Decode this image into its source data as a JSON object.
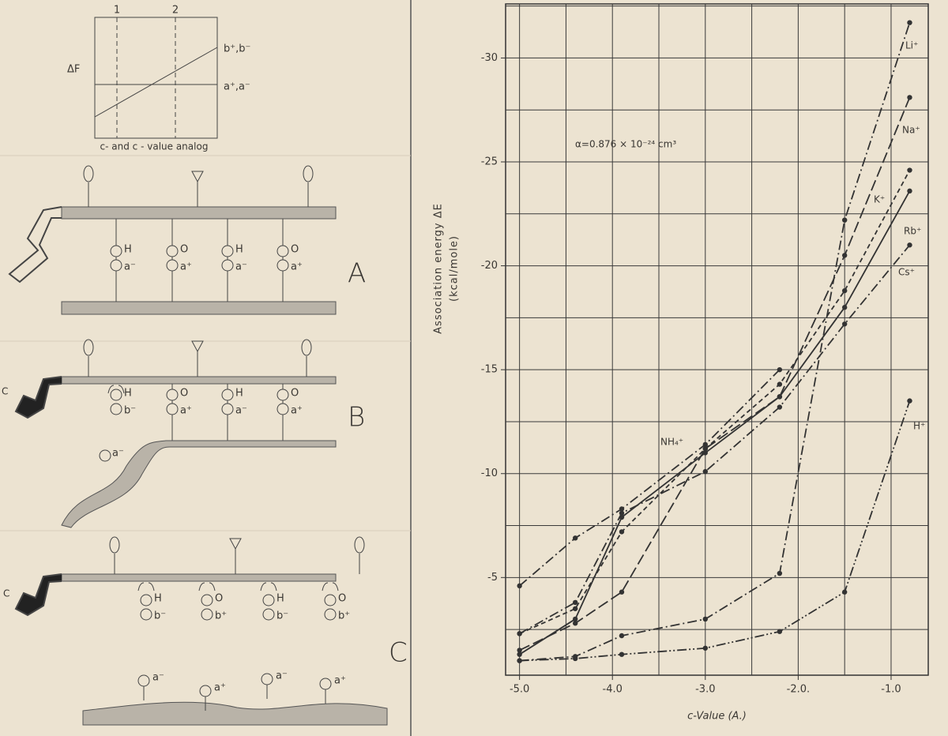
{
  "diagram": {
    "top_graph": {
      "ticks": [
        "1",
        "2"
      ],
      "y_label": "ΔF",
      "upper_label": "b⁺,b⁻",
      "lower_label": "a⁺,a⁻",
      "caption": "c- and c - value analog"
    },
    "panels": [
      {
        "letter": "A",
        "pairs": [
          {
            "top": "H",
            "bottom": "a⁻"
          },
          {
            "top": "O",
            "bottom": "a⁺"
          },
          {
            "top": "H",
            "bottom": "a⁻"
          },
          {
            "top": "O",
            "bottom": "a⁺"
          }
        ]
      },
      {
        "letter": "B",
        "side": "C",
        "pairs": [
          {
            "top": "H",
            "bottom": "b⁻"
          },
          {
            "top": "O",
            "bottom": "a⁺"
          },
          {
            "top": "H",
            "bottom": "a⁻"
          },
          {
            "top": "O",
            "bottom": "a⁺"
          }
        ],
        "free": [
          "a⁻"
        ]
      },
      {
        "letter": "C",
        "side": "C",
        "pairs": [
          {
            "top": "H",
            "bottom": "b⁻"
          },
          {
            "top": "O",
            "bottom": "b⁺"
          },
          {
            "top": "H",
            "bottom": "b⁻"
          },
          {
            "top": "O",
            "bottom": "b⁺"
          }
        ],
        "free": [
          "a⁻",
          "a⁺",
          "a⁻",
          "a⁺"
        ]
      }
    ]
  },
  "chart_data": {
    "type": "line",
    "annotation": "α=0.876 × 10⁻²⁴ cm³",
    "x_label": "c-Value (A.)",
    "y_label": [
      "Association energy  ΔE",
      "(kcal/mole)"
    ],
    "x": [
      -5.0,
      -4.4,
      -3.9,
      -3.0,
      -2.2,
      -1.5,
      -0.8
    ],
    "xlim": [
      -5.15,
      -0.6
    ],
    "ylim": [
      -0.3,
      -32.6
    ],
    "xticks": [
      {
        "value": -5,
        "label": "-5.0"
      },
      {
        "value": -4,
        "label": "-4.0"
      },
      {
        "value": -3,
        "label": "-3.0"
      },
      {
        "value": -2,
        "label": "-2.0."
      },
      {
        "value": -1,
        "label": "-1.0"
      }
    ],
    "yticks": [
      -30,
      -25,
      -20,
      -15,
      -10,
      -5
    ],
    "xgrid": [
      -5,
      -4.5,
      -4,
      -3.5,
      -3,
      -2.5,
      -2,
      -1.5,
      -1
    ],
    "ygrid": [
      -2.5,
      -5,
      -7.5,
      -10,
      -12.5,
      -15,
      -17.5,
      -20,
      -22.5,
      -25,
      -27.5,
      -30,
      -32.5
    ],
    "grid": true,
    "series": [
      {
        "name": "Li⁺",
        "color": "#333333",
        "line_style": "dash-dot",
        "values": [
          -1.0,
          -1.2,
          -2.2,
          -3.0,
          -5.2,
          -22.2,
          -31.7
        ]
      },
      {
        "name": "Na⁺",
        "color": "#333333",
        "line_style": "long-dash",
        "values": [
          -1.5,
          -2.8,
          -4.3,
          -11.2,
          -13.7,
          -20.5,
          -28.1
        ]
      },
      {
        "name": "K⁺",
        "color": "#333333",
        "line_style": "short-dash",
        "values": [
          -2.3,
          -3.5,
          -7.2,
          -11.2,
          -14.3,
          -18.8,
          -24.6
        ]
      },
      {
        "name": "Rb⁺",
        "color": "#333333",
        "line_style": "solid",
        "values": [
          -1.3,
          -3.0,
          -7.9,
          -11.0,
          -13.7,
          -18.0,
          -23.6
        ]
      },
      {
        "name": "Cs⁺",
        "color": "#333333",
        "line_style": "dash-dot",
        "values": [
          -2.3,
          -3.8,
          -8.1,
          -10.1,
          -13.2,
          -17.2,
          -21.0
        ]
      },
      {
        "name": "NH₄⁺",
        "color": "#333333",
        "line_style": "dash-dot",
        "values": [
          -4.6,
          -6.9,
          -8.3,
          -11.4,
          -15.0,
          null,
          null
        ]
      },
      {
        "name": "H⁺",
        "color": "#333333",
        "line_style": "dash-dot-dot",
        "values": [
          -1.0,
          -1.1,
          -1.3,
          -1.6,
          -2.4,
          -4.3,
          -13.5
        ]
      }
    ]
  }
}
